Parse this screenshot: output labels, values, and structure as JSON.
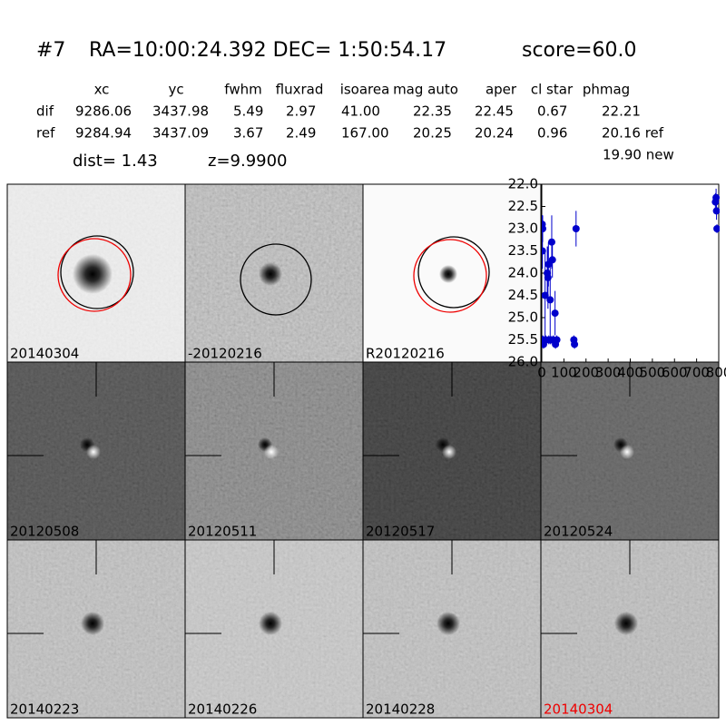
{
  "header": {
    "object": "#7",
    "coords": "RA=10:00:24.392 DEC= 1:50:54.17",
    "score": "score=60.0"
  },
  "table": {
    "columns": [
      "xc",
      "yc",
      "fwhm",
      "fluxrad",
      "isoarea",
      "mag auto",
      "aper",
      "cl star",
      "phmag"
    ],
    "rows": [
      {
        "label": "dif",
        "cells": [
          "9286.06",
          "3437.98",
          "5.49",
          "2.97",
          "41.00",
          "22.35",
          "22.45",
          "0.67",
          "22.21"
        ]
      },
      {
        "label": "ref",
        "cells": [
          "9284.94",
          "3437.09",
          "3.67",
          "2.49",
          "167.00",
          "20.25",
          "20.24",
          "0.96",
          "20.16 ref"
        ]
      }
    ],
    "new": "19.90 new",
    "dist": "dist=  1.43",
    "z": "z=9.9900"
  },
  "stamps": [
    "20140304",
    "-20120216",
    "R20120216",
    "20120508",
    "20120511",
    "20120517",
    "20120524",
    "20140223",
    "20140226",
    "20140228",
    "20140304"
  ],
  "chart_data": {
    "type": "scatter",
    "color": "#0000cc",
    "x": [
      2,
      4,
      3,
      5,
      8,
      15,
      18,
      25,
      28,
      30,
      32,
      38,
      40,
      45,
      48,
      52,
      60,
      62,
      68,
      145,
      148,
      155,
      785,
      788,
      790,
      792
    ],
    "values": [
      22.9,
      23.0,
      23.5,
      25.5,
      25.6,
      24.5,
      25.5,
      24.0,
      24.1,
      23.8,
      25.5,
      24.6,
      25.5,
      23.3,
      23.7,
      25.5,
      24.9,
      25.6,
      25.5,
      25.5,
      25.6,
      23.0,
      22.4,
      22.3,
      22.6,
      23.0
    ],
    "errors": [
      0.2,
      0.3,
      0.4,
      0.1,
      0.1,
      1.0,
      0.1,
      0.6,
      0.7,
      0.5,
      0.1,
      0.8,
      0.1,
      0.6,
      0.4,
      0.1,
      0.5,
      0.1,
      0.1,
      0.1,
      0.1,
      0.4,
      0.2,
      0.2,
      0.2,
      0.1
    ],
    "xlim": [
      0,
      800
    ],
    "xticks": [
      0,
      100,
      200,
      300,
      400,
      500,
      600,
      700,
      800
    ],
    "ylim": [
      22,
      26
    ],
    "y_inverted": true,
    "yticks": [
      {
        "value": 22,
        "label": "22.0"
      },
      {
        "value": 22.5,
        "label": "22.5"
      },
      {
        "value": 23,
        "label": "23.0"
      },
      {
        "value": 23.5,
        "label": "23.5"
      },
      {
        "value": 24,
        "label": "24.0"
      },
      {
        "value": 24.5,
        "label": "24.5"
      },
      {
        "value": 25,
        "label": "25.0"
      },
      {
        "value": 25.5,
        "label": "25.5"
      },
      {
        "value": 26,
        "label": "26.0"
      }
    ]
  }
}
